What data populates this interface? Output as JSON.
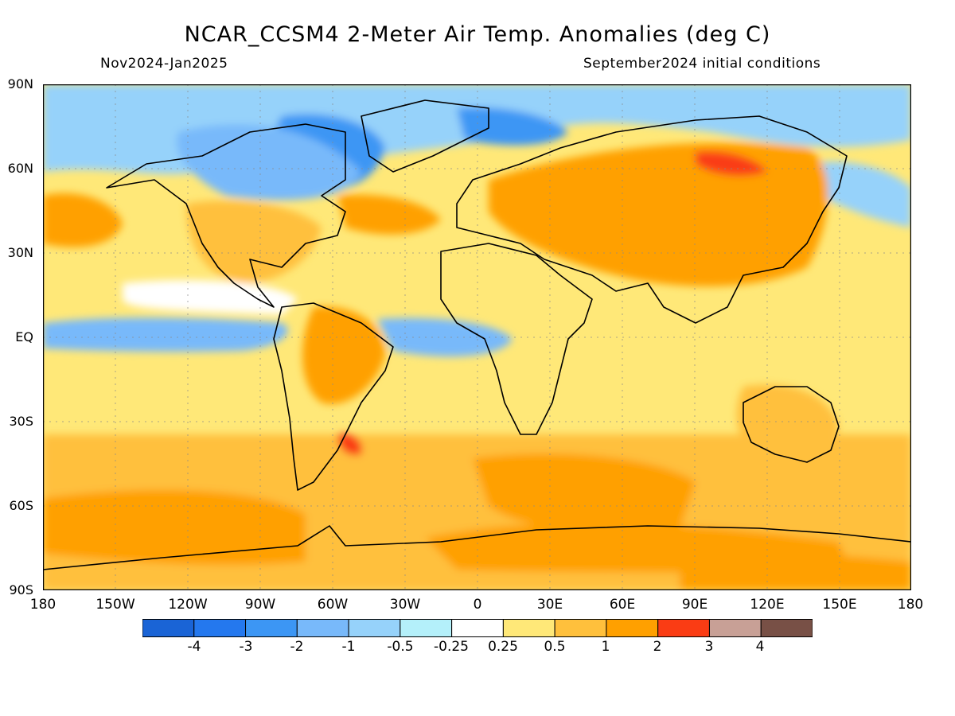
{
  "header": {
    "title": "NCAR_CCSM4 2-Meter Air Temp. Anomalies (deg C)",
    "period": "Nov2024-Jan2025",
    "init": "September2024 initial conditions"
  },
  "map": {
    "lat_labels": [
      "90N",
      "60N",
      "30N",
      "EQ",
      "30S",
      "60S",
      "90S"
    ],
    "lat_values": [
      90,
      60,
      30,
      0,
      -30,
      -60,
      -90
    ],
    "lon_labels": [
      "180",
      "150W",
      "120W",
      "90W",
      "60W",
      "30W",
      "0",
      "30E",
      "60E",
      "90E",
      "120E",
      "150E",
      "180"
    ],
    "lon_values": [
      -180,
      -150,
      -120,
      -90,
      -60,
      -30,
      0,
      30,
      60,
      90,
      120,
      150,
      180
    ],
    "lon_range": [
      -180,
      180
    ],
    "lat_range": [
      -90,
      90
    ],
    "grid": "dotted"
  },
  "colorbar": {
    "labels": [
      "-4",
      "-3",
      "-2",
      "-1",
      "-0.5",
      "-0.25",
      "0.25",
      "0.5",
      "1",
      "2",
      "3",
      "4"
    ],
    "colors": [
      "#1a64d6",
      "#2478ee",
      "#3c96f4",
      "#78b9fa",
      "#96d2fa",
      "#b4f0fa",
      "#ffffff",
      "#ffe878",
      "#ffc03c",
      "#ffa000",
      "#fa3c14",
      "#c8a096",
      "#785046"
    ]
  },
  "palette": {
    "deep_blue": "#1a64d6",
    "blue": "#3c96f4",
    "mid_blue": "#78b9fa",
    "light_blue": "#96d2fa",
    "pale_blue": "#b4f0fa",
    "neutral": "#ffffff",
    "pale_yellow": "#ffe878",
    "light_orange": "#ffc03c",
    "orange": "#ffa000",
    "red": "#fa3c14"
  }
}
